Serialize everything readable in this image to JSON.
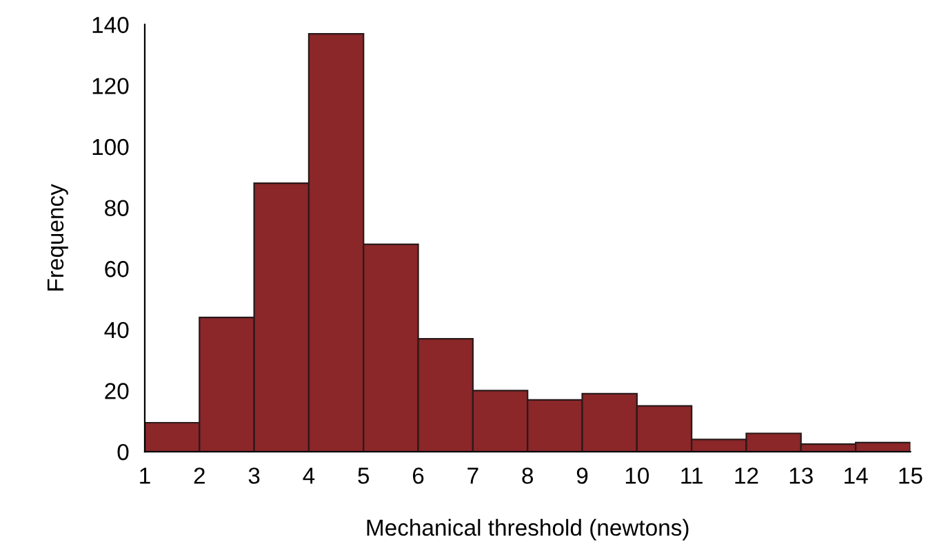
{
  "chart_data": {
    "type": "histogram",
    "xlabel": "Mechanical threshold (newtons)",
    "ylabel": "Frequency",
    "bins": [
      1,
      2,
      3,
      4,
      5,
      6,
      7,
      8,
      9,
      10,
      11,
      12,
      13,
      14,
      15
    ],
    "values": [
      9.5,
      44,
      88,
      137,
      68,
      37,
      20,
      17,
      19,
      15,
      4,
      6,
      2.5,
      3
    ],
    "color": "#8b2629",
    "xlim": [
      1,
      15
    ],
    "xticks": [
      1,
      2,
      3,
      4,
      5,
      6,
      7,
      8,
      9,
      10,
      11,
      12,
      13,
      14,
      15
    ],
    "ylim": [
      0,
      140
    ],
    "yticks": [
      0,
      20,
      40,
      60,
      80,
      100,
      120,
      140
    ],
    "grid": false,
    "legend": false
  }
}
